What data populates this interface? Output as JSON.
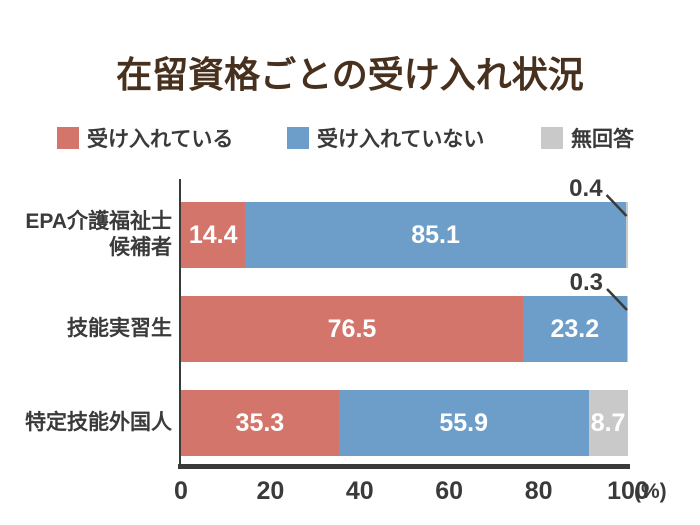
{
  "title": "在留資格ごとの受け入れ状況",
  "legend": [
    {
      "label": "受け入れている",
      "color": "#d3756b"
    },
    {
      "label": "受け入れていない",
      "color": "#6d9ec9"
    },
    {
      "label": "無回答",
      "color": "#c9c9c9"
    }
  ],
  "chart_data": {
    "type": "bar",
    "orientation": "horizontal",
    "stacked": true,
    "title": "在留資格ごとの受け入れ状況",
    "categories": [
      "EPA介護福祉士\n候補者",
      "技能実習生",
      "特定技能外国人"
    ],
    "series": [
      {
        "name": "受け入れている",
        "color": "#d3756b",
        "values": [
          14.4,
          76.5,
          35.3
        ]
      },
      {
        "name": "受け入れていない",
        "color": "#6d9ec9",
        "values": [
          85.1,
          23.2,
          55.9
        ]
      },
      {
        "name": "無回答",
        "color": "#c9c9c9",
        "values": [
          0.4,
          0.3,
          8.7
        ]
      }
    ],
    "xticks": [
      0,
      20,
      40,
      60,
      80,
      100
    ],
    "xlim": [
      0,
      100
    ],
    "axis_unit_label": "(%)",
    "grid": false,
    "legend_position": "top"
  },
  "colors": {
    "title": "#47301d",
    "text": "#3a3a3a",
    "axis": "#3a3a3a",
    "bar_value_text": "#ffffff",
    "background": "#ffffff"
  }
}
